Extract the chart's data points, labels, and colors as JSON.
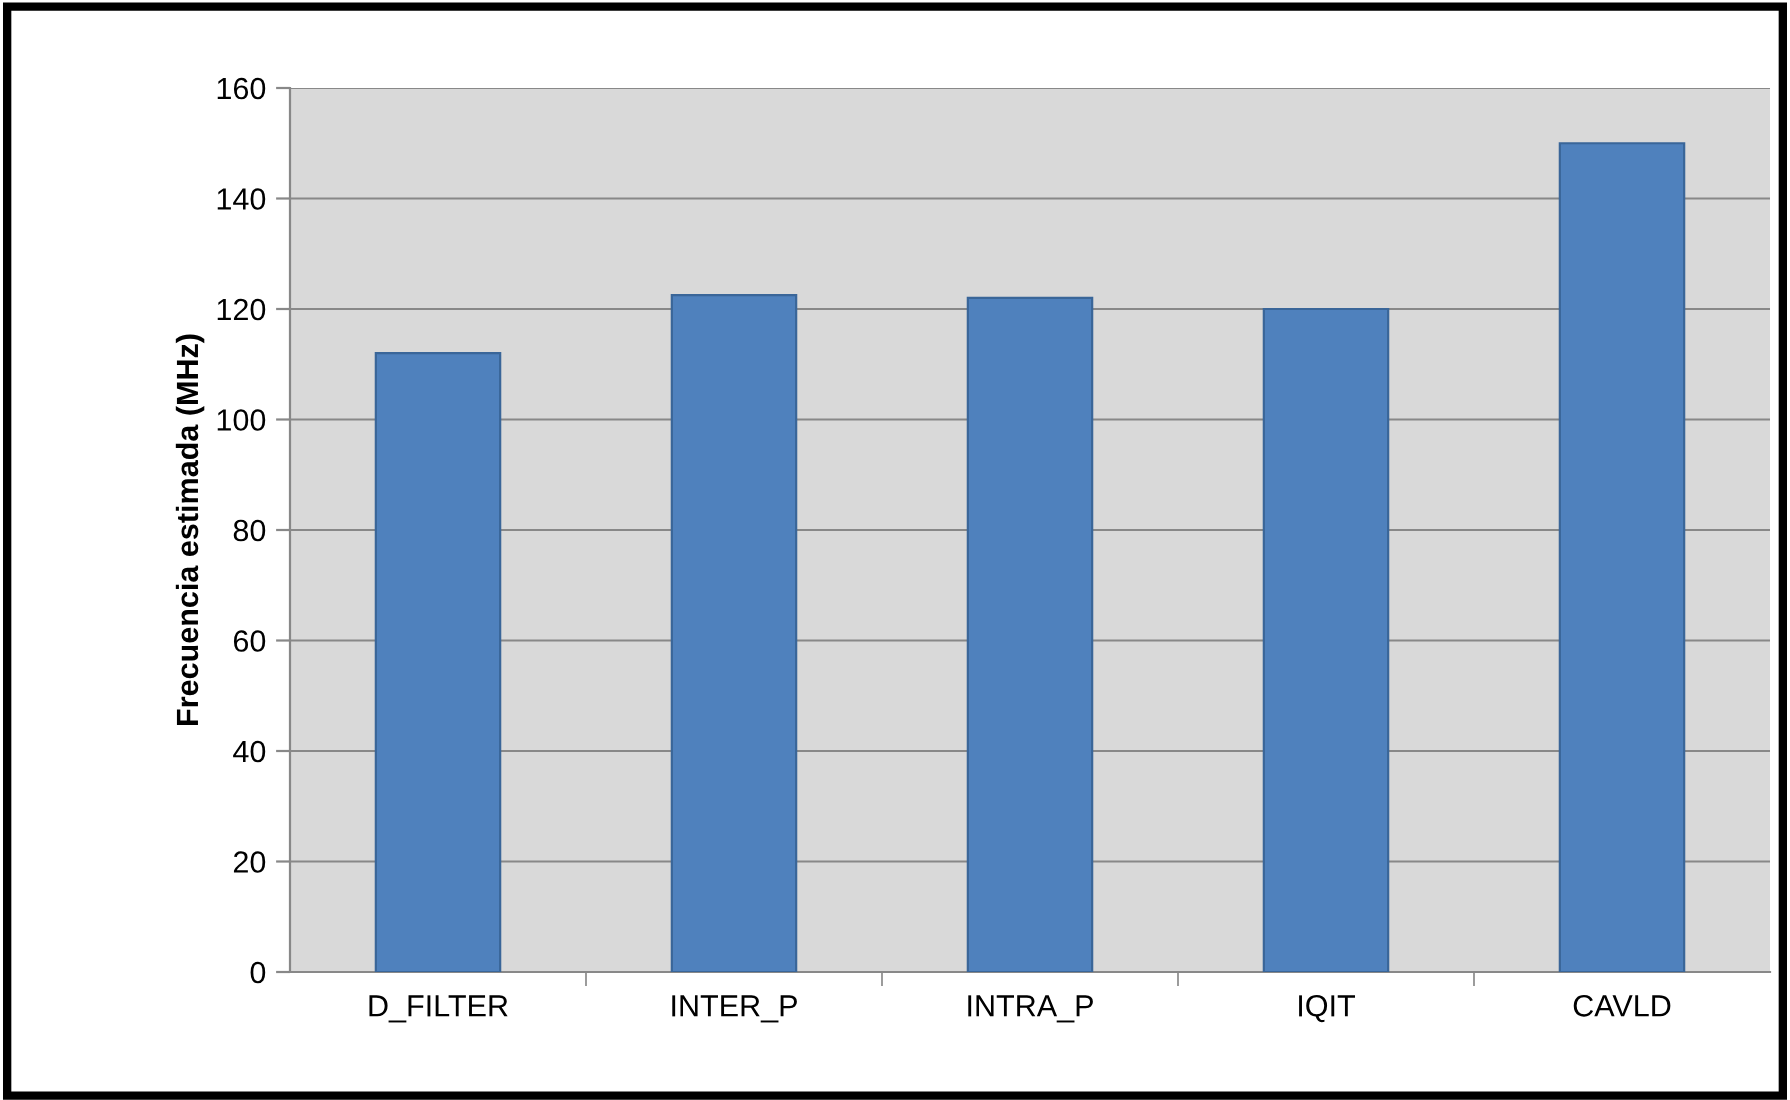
{
  "chart_data": {
    "type": "bar",
    "ylabel": "Frecuencia estimada (MHz)",
    "categories": [
      "D_FILTER",
      "INTER_P",
      "INTRA_P",
      "IQIT",
      "CAVLD"
    ],
    "values": [
      112,
      122.5,
      122,
      120,
      150
    ],
    "color": "#4f81bd",
    "ylim": [
      0,
      160
    ],
    "yticks": [
      0,
      20,
      40,
      60,
      80,
      100,
      120,
      140,
      160
    ],
    "grid": "y",
    "legend": false
  }
}
